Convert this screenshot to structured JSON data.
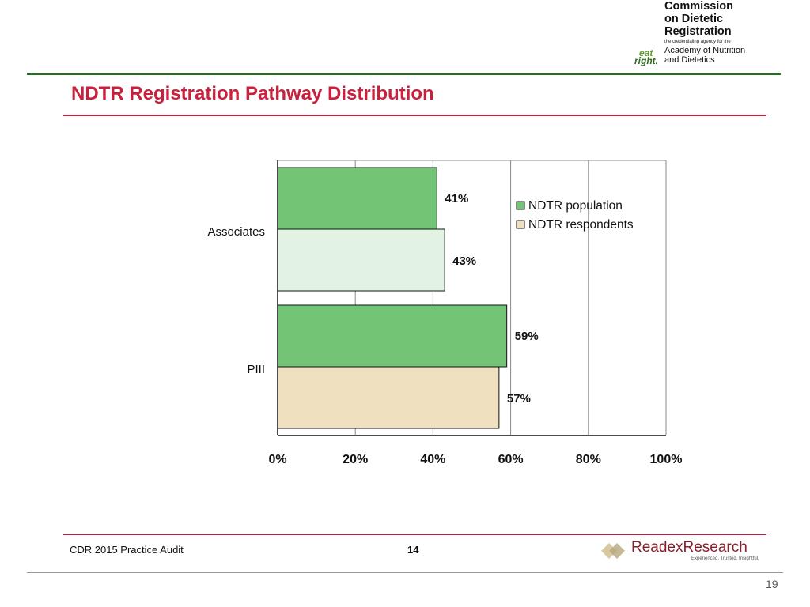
{
  "logo": {
    "line1": "Commission",
    "line2": "on Dietetic",
    "line3": "Registration",
    "tagline": "the credentialing agency for the",
    "academy_line1": "Academy of Nutrition",
    "academy_line2": "and Dietetics",
    "eat": "eat",
    "right": "right."
  },
  "slide": {
    "title": "NDTR Registration Pathway Distribution",
    "footer_left": "CDR 2015 Practice Audit",
    "footer_page": "14",
    "readex_name": "ReadexResearch",
    "readex_tagline": "Experienced. Trusted. Insightful.",
    "slide_number": "19"
  },
  "colors": {
    "population": "#74c476",
    "respondents_associates": "#e3f3e3",
    "respondents_piii": "#efe0c0",
    "title": "#c8203d"
  },
  "chart_data": {
    "type": "bar",
    "orientation": "horizontal",
    "title": "NDTR Registration Pathway Distribution",
    "categories": [
      "Associates",
      "PIII"
    ],
    "series": [
      {
        "name": "NDTR population",
        "values": [
          41,
          59
        ]
      },
      {
        "name": "NDTR respondents",
        "values": [
          43,
          57
        ]
      }
    ],
    "value_labels": [
      [
        "41%",
        "59%"
      ],
      [
        "43%",
        "57%"
      ]
    ],
    "xlim": [
      0,
      100
    ],
    "ticks": [
      "0%",
      "20%",
      "40%",
      "60%",
      "80%",
      "100%"
    ],
    "legend_position": "top-right",
    "grid": true
  }
}
